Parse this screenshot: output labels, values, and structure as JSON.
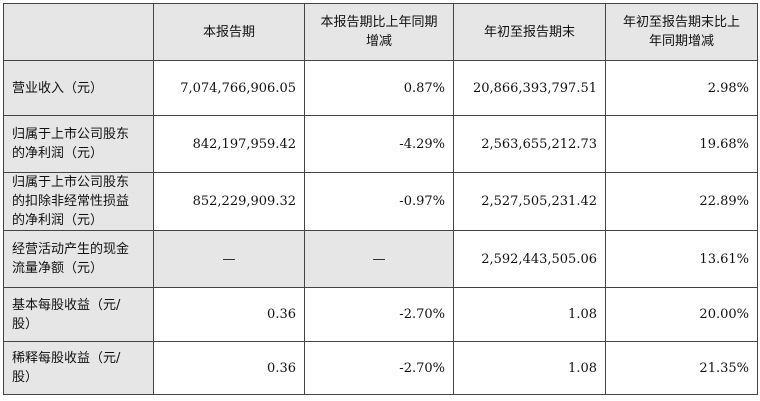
{
  "headers": {
    "col0": "",
    "col1": "本报告期",
    "col2_line1": "本报告期比上年同期",
    "col2_line2": "增减",
    "col3": "年初至报告期末",
    "col4_line1": "年初至报告期末比上",
    "col4_line2": "年同期增减"
  },
  "rows": [
    {
      "label_lines": [
        "营业收入（元）"
      ],
      "current": "7,074,766,906.05",
      "current_change": "0.87%",
      "ytd": "20,866,393,797.51",
      "ytd_change": "2.98%"
    },
    {
      "label_lines": [
        "归属于上市公司股东",
        "的净利润（元）"
      ],
      "current": "842,197,959.42",
      "current_change": "-4.29%",
      "ytd": "2,563,655,212.73",
      "ytd_change": "19.68%"
    },
    {
      "label_lines": [
        "归属于上市公司股东",
        "的扣除非经常性损益",
        "的净利润（元）"
      ],
      "current": "852,229,909.32",
      "current_change": "-0.97%",
      "ytd": "2,527,505,231.42",
      "ytd_change": "22.89%"
    },
    {
      "label_lines": [
        "经营活动产生的现金",
        "流量净额（元）"
      ],
      "current": "—",
      "current_change": "—",
      "ytd": "2,592,443,505.06",
      "ytd_change": "13.61%"
    },
    {
      "label_lines": [
        "基本每股收益（元/",
        "股）"
      ],
      "current": "0.36",
      "current_change": "-2.70%",
      "ytd": "1.08",
      "ytd_change": "20.00%"
    },
    {
      "label_lines": [
        "稀释每股收益（元/",
        "股）"
      ],
      "current": "0.36",
      "current_change": "-2.70%",
      "ytd": "1.08",
      "ytd_change": "21.35%"
    }
  ]
}
